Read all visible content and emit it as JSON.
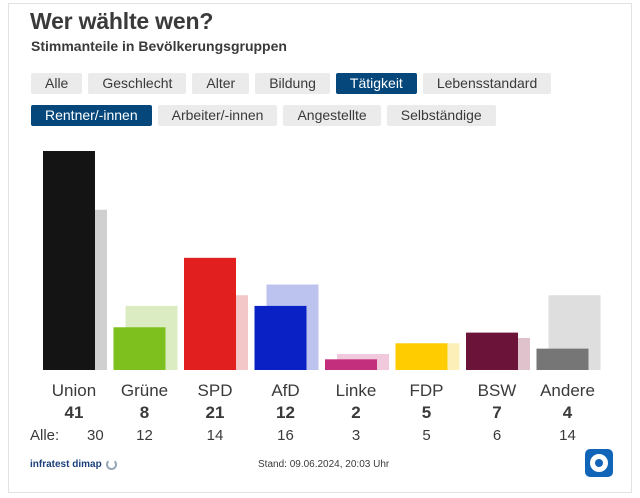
{
  "header": {
    "title": "Wer wählte wen?",
    "subtitle": "Stimmanteile in Bevölkerungsgruppen"
  },
  "tabs_main": [
    {
      "label": "Alle",
      "active": false
    },
    {
      "label": "Geschlecht",
      "active": false
    },
    {
      "label": "Alter",
      "active": false
    },
    {
      "label": "Bildung",
      "active": false
    },
    {
      "label": "Tätigkeit",
      "active": true
    },
    {
      "label": "Lebensstandard",
      "active": false
    }
  ],
  "tabs_sub": [
    {
      "label": "Rentner/-innen",
      "active": true
    },
    {
      "label": "Arbeiter/-innen",
      "active": false
    },
    {
      "label": "Angestellte",
      "active": false
    },
    {
      "label": "Selbständige",
      "active": false
    }
  ],
  "chart_data": {
    "type": "bar",
    "title": "Wer wählte wen?",
    "subtitle": "Stimmanteile in Bevölkerungsgruppen",
    "categories": [
      "Union",
      "Grüne",
      "SPD",
      "AfD",
      "Linke",
      "FDP",
      "BSW",
      "Andere"
    ],
    "series": [
      {
        "name": "Rentner/-innen",
        "values": [
          41,
          8,
          21,
          12,
          2,
          5,
          7,
          4
        ]
      },
      {
        "name": "Alle",
        "values": [
          30,
          12,
          14,
          16,
          3,
          5,
          6,
          14
        ]
      }
    ],
    "comparison_label": "Alle:",
    "colors": [
      "#141414",
      "#7ec11e",
      "#e21f1f",
      "#0a21c6",
      "#c42f7d",
      "#ffcc00",
      "#6b1338",
      "#767676"
    ],
    "colors_light": [
      "#d0d0d0",
      "#dbecc3",
      "#f3c7c7",
      "#bcc3ee",
      "#f0c9dd",
      "#fcf0b8",
      "#dfc2cb",
      "#dedede"
    ],
    "ylim": [
      0,
      42
    ],
    "xlabel": "",
    "ylabel": ""
  },
  "footer": {
    "source": "infratest dimap",
    "stand": "Stand: 09.06.2024, 20:03 Uhr"
  }
}
